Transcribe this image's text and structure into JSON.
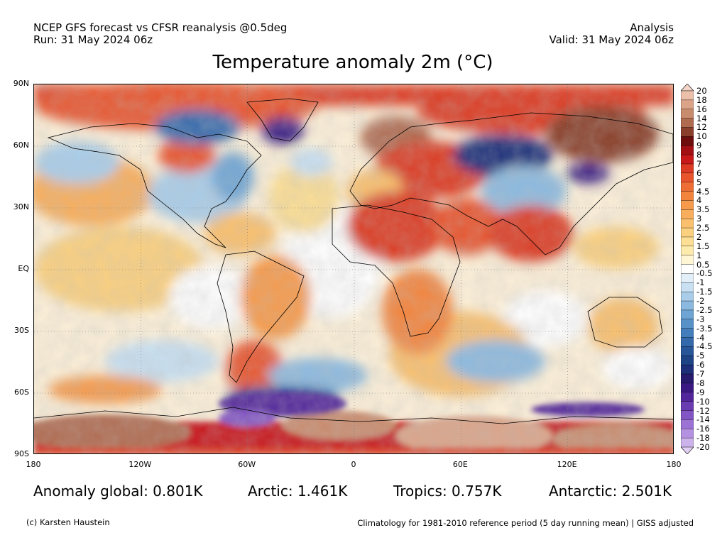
{
  "header": {
    "line1_left": "NCEP GFS forecast vs CFSR reanalysis @0.5deg",
    "line2_left": "Run: 31 May 2024 06z",
    "line1_right": "Analysis",
    "line2_right": "Valid: 31 May 2024 06z"
  },
  "title": "Temperature anomaly 2m (°C)",
  "lat_labels": [
    "90N",
    "60N",
    "30N",
    "EQ",
    "30S",
    "60S",
    "90S"
  ],
  "lon_labels": [
    "180",
    "120W",
    "60W",
    "0",
    "60E",
    "120E",
    "180"
  ],
  "colorbar": {
    "labels": [
      "20",
      "18",
      "16",
      "14",
      "12",
      "10",
      "9",
      "8",
      "7",
      "6",
      "5",
      "4.5",
      "4",
      "3.5",
      "3",
      "2.5",
      "2",
      "1.5",
      "1",
      "0.5",
      "-0.5",
      "-1",
      "-1.5",
      "-2",
      "-2.5",
      "-3",
      "-3.5",
      "-4",
      "-4.5",
      "-5",
      "-6",
      "-7",
      "-8",
      "-9",
      "-10",
      "-12",
      "-14",
      "-16",
      "-18",
      "-20"
    ],
    "colors": [
      "#f5d5c8",
      "#ebbfaa",
      "#dba489",
      "#c98b6d",
      "#b06a50",
      "#8a3f2c",
      "#6e0d0d",
      "#a30f12",
      "#c8181a",
      "#dc3a22",
      "#e8552d",
      "#ee6d35",
      "#f3843e",
      "#f69a4c",
      "#f8ae5c",
      "#fac06d",
      "#fbd07f",
      "#fcde94",
      "#fdeaad",
      "#fff6d6",
      "#ffffff",
      "#e2eef8",
      "#c8e0f2",
      "#a9cde9",
      "#8bb9df",
      "#6fa5d4",
      "#5791c8",
      "#437dbb",
      "#3469ab",
      "#285698",
      "#1f4486",
      "#1d2f78",
      "#261b6c",
      "#3a1a82",
      "#52269a",
      "#6a3bb1",
      "#8355c4",
      "#9c72d4",
      "#b592e1",
      "#cdb3ec",
      "#e2d0f4"
    ]
  },
  "stats": {
    "global": "Anomaly global: 0.801K",
    "arctic": "Arctic: 1.461K",
    "tropics": "Tropics: 0.757K",
    "antarctic": "Antarctic: 2.501K"
  },
  "footer": {
    "left": "(c) Karsten Haustein",
    "right": "Climatology for 1981-2010 reference period (5 day running mean) | GISS adjusted"
  },
  "map_regions": [
    {
      "name": "arctic-warm-band",
      "value": 6
    },
    {
      "name": "greenland-cold",
      "value": -9
    },
    {
      "name": "north-america-cool",
      "value": -2
    },
    {
      "name": "canada-warm",
      "value": 5
    },
    {
      "name": "scandinavia-hot",
      "value": 12
    },
    {
      "name": "west-siberia-cold",
      "value": -10
    },
    {
      "name": "east-siberia-hot",
      "value": 10
    },
    {
      "name": "north-africa-warm",
      "value": 6
    },
    {
      "name": "india-se-asia-warm",
      "value": 5
    },
    {
      "name": "south-america-warm",
      "value": 3
    },
    {
      "name": "south-pacific-cool",
      "value": -3
    },
    {
      "name": "antarctica-hot",
      "value": 14
    },
    {
      "name": "weddell-cold",
      "value": -10
    }
  ]
}
